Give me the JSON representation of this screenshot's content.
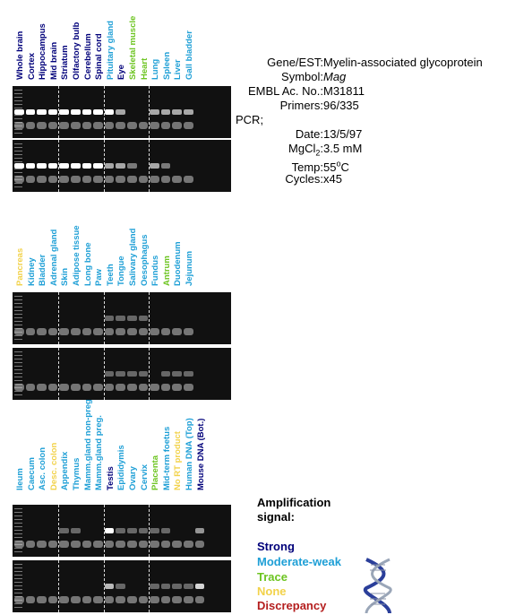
{
  "gene_info": {
    "gene_label": "Gene/EST:",
    "gene_value": "Myelin-associated glycoprotein",
    "symbol_label": "Symbol:",
    "symbol_value": "Mag",
    "embl_label": "EMBL Ac. No.:",
    "embl_value": "M31811",
    "primers_label": "Primers:",
    "primers_value": "96/335",
    "pcr_label": "PCR;",
    "date_label": "Date:",
    "date_value": "13/5/97",
    "mgcl_label_pre": "MgCl",
    "mgcl_label_sub": "2",
    "mgcl_label_post": ":",
    "mgcl_value": "3.5 mM",
    "temp_label": "Temp:",
    "temp_value_pre": "55",
    "temp_value_sup": "o",
    "temp_value_post": "C",
    "cycles_label": "Cycles:",
    "cycles_value": "x45"
  },
  "colors": {
    "strong": "#00007a",
    "moderate_weak": "#1e9fd6",
    "trace": "#6cc420",
    "none": "#f2d24a",
    "discrepancy": "#b41e1e"
  },
  "panels": [
    {
      "lanes": [
        {
          "label": "Whole brain",
          "signal": "strong"
        },
        {
          "label": "Cortex",
          "signal": "strong"
        },
        {
          "label": "Hippocampus",
          "signal": "strong"
        },
        {
          "label": "Mid brain",
          "signal": "strong"
        },
        {
          "label": "Striatum",
          "signal": "strong"
        },
        {
          "label": "Olfactory bulb",
          "signal": "strong"
        },
        {
          "label": "Cerebellum",
          "signal": "strong"
        },
        {
          "label": "Spinal cord",
          "signal": "strong"
        },
        {
          "label": "Pituitary gland",
          "signal": "moderate_weak"
        },
        {
          "label": "Eye",
          "signal": "strong"
        },
        {
          "label": "Skeletal muscle",
          "signal": "trace"
        },
        {
          "label": "Heart",
          "signal": "trace"
        },
        {
          "label": "Lung",
          "signal": "moderate_weak"
        },
        {
          "label": "Spleen",
          "signal": "moderate_weak"
        },
        {
          "label": "Liver",
          "signal": "moderate_weak"
        },
        {
          "label": "Gall bladder",
          "signal": "moderate_weak"
        }
      ],
      "separators_after": [
        4,
        8,
        12
      ]
    },
    {
      "lanes": [
        {
          "label": "Pancreas",
          "signal": "none"
        },
        {
          "label": "Kidney",
          "signal": "moderate_weak"
        },
        {
          "label": "Bladder",
          "signal": "moderate_weak"
        },
        {
          "label": "Adrenal gland",
          "signal": "moderate_weak"
        },
        {
          "label": "Skin",
          "signal": "moderate_weak"
        },
        {
          "label": "Adipose tissue",
          "signal": "moderate_weak"
        },
        {
          "label": "Long bone",
          "signal": "moderate_weak"
        },
        {
          "label": "Paw",
          "signal": "moderate_weak"
        },
        {
          "label": "Teeth",
          "signal": "moderate_weak"
        },
        {
          "label": "Tongue",
          "signal": "moderate_weak"
        },
        {
          "label": "Salivary gland",
          "signal": "moderate_weak"
        },
        {
          "label": "Oesophagus",
          "signal": "moderate_weak"
        },
        {
          "label": "Fundus",
          "signal": "moderate_weak"
        },
        {
          "label": "Antrum",
          "signal": "trace"
        },
        {
          "label": "Duodenum",
          "signal": "moderate_weak"
        },
        {
          "label": "Jejunum",
          "signal": "moderate_weak"
        }
      ],
      "separators_after": [
        4,
        8,
        12
      ]
    },
    {
      "lanes": [
        {
          "label": "Ileum",
          "signal": "moderate_weak"
        },
        {
          "label": "Caecum",
          "signal": "moderate_weak"
        },
        {
          "label": "Asc. colon",
          "signal": "moderate_weak"
        },
        {
          "label": "Desc. colon",
          "signal": "none"
        },
        {
          "label": "Appendix",
          "signal": "moderate_weak"
        },
        {
          "label": "Thymus",
          "signal": "moderate_weak"
        },
        {
          "label": "Mamm.gland non-preg.",
          "signal": "moderate_weak"
        },
        {
          "label": "Mamm.gland preg.",
          "signal": "moderate_weak"
        },
        {
          "label": "Testis",
          "signal": "strong"
        },
        {
          "label": "Epididymis",
          "signal": "moderate_weak"
        },
        {
          "label": "Ovary",
          "signal": "moderate_weak"
        },
        {
          "label": "Cervix",
          "signal": "moderate_weak"
        },
        {
          "label": "Placenta",
          "signal": "trace"
        },
        {
          "label": "Mid-term foetus",
          "signal": "moderate_weak"
        },
        {
          "label": "No RT product",
          "signal": "none"
        },
        {
          "label": "Human DNA (Top)",
          "signal": "moderate_weak"
        },
        {
          "label": "Mouse DNA (Bot.)",
          "signal": "strong"
        }
      ],
      "separators_after": [
        4,
        8,
        12
      ]
    }
  ],
  "legend": {
    "title": "Amplification signal:",
    "items": [
      {
        "key": "strong",
        "label": "Strong"
      },
      {
        "key": "moderate_weak",
        "label": "Moderate-weak"
      },
      {
        "key": "trace",
        "label": "Trace"
      },
      {
        "key": "none",
        "label": "None"
      },
      {
        "key": "discrepancy",
        "label": "Discrepancy"
      }
    ]
  },
  "gel_bands": [
    {
      "top": [
        2,
        2,
        2,
        2,
        2,
        2,
        2,
        2,
        2,
        1,
        0,
        0,
        1,
        1,
        1,
        1
      ],
      "bottom": [
        2,
        2,
        2,
        2,
        2,
        2,
        2,
        2,
        1,
        1,
        0.5,
        0,
        1,
        0.5,
        0,
        0
      ]
    },
    {
      "top": [
        0,
        0,
        0,
        0,
        0,
        0,
        0,
        0,
        0.3,
        0.3,
        0.3,
        0.3,
        0,
        0,
        0,
        0
      ],
      "bottom": [
        0,
        0,
        0,
        0,
        0,
        0,
        0,
        0,
        0.3,
        0.3,
        0.3,
        0.3,
        0,
        0.3,
        0.3,
        0.3
      ]
    },
    {
      "top": [
        0,
        0,
        0,
        0,
        0.3,
        0.3,
        0,
        0,
        2,
        0.3,
        0.3,
        0.3,
        0.3,
        0.3,
        0,
        0,
        0.8
      ],
      "bottom": [
        0,
        0,
        0,
        0,
        0,
        0,
        0,
        0,
        1.2,
        0.3,
        0,
        0,
        0.3,
        0.3,
        0.3,
        0.3,
        1.5
      ]
    }
  ]
}
